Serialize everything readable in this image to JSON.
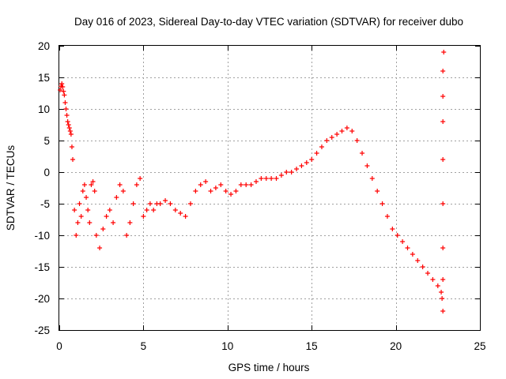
{
  "chart_data": {
    "type": "scatter",
    "title": "Day 016 of 2023, Sidereal Day-to-day VTEC variation (SDTVAR) for receiver dubo",
    "xlabel": "GPS time / hours",
    "ylabel": "SDTVAR / TECUs",
    "xlim": [
      0,
      25
    ],
    "ylim": [
      -25,
      20
    ],
    "xticks": [
      0,
      5,
      10,
      15,
      20,
      25
    ],
    "yticks": [
      -25,
      -20,
      -15,
      -10,
      -5,
      0,
      5,
      10,
      15,
      20
    ],
    "grid": true,
    "marker": "+",
    "series": [
      {
        "name": "SDTVAR",
        "color": "#ff0000",
        "x": [
          0.05,
          0.1,
          0.15,
          0.2,
          0.25,
          0.3,
          0.35,
          0.4,
          0.45,
          0.5,
          0.55,
          0.6,
          0.65,
          0.7,
          0.75,
          0.8,
          0.9,
          1.0,
          1.1,
          1.2,
          1.3,
          1.4,
          1.5,
          1.6,
          1.7,
          1.8,
          1.9,
          2.0,
          2.1,
          2.2,
          2.4,
          2.6,
          2.8,
          3.0,
          3.2,
          3.4,
          3.6,
          3.8,
          4.0,
          4.2,
          4.4,
          4.6,
          4.8,
          5.0,
          5.2,
          5.4,
          5.6,
          5.8,
          6.0,
          6.3,
          6.6,
          6.9,
          7.2,
          7.5,
          7.8,
          8.1,
          8.4,
          8.7,
          9.0,
          9.3,
          9.6,
          9.9,
          10.2,
          10.5,
          10.8,
          11.1,
          11.4,
          11.7,
          12.0,
          12.3,
          12.6,
          12.9,
          13.2,
          13.5,
          13.8,
          14.1,
          14.4,
          14.7,
          15.0,
          15.3,
          15.6,
          15.9,
          16.2,
          16.5,
          16.8,
          17.1,
          17.4,
          17.7,
          18.0,
          18.3,
          18.6,
          18.9,
          19.2,
          19.5,
          19.8,
          20.1,
          20.4,
          20.7,
          21.0,
          21.3,
          21.6,
          21.9,
          22.2,
          22.5,
          22.7,
          22.75,
          22.8,
          22.8,
          22.8,
          22.8,
          22.8,
          22.8,
          22.8,
          22.8,
          22.85
        ],
        "y": [
          13,
          13.6,
          14,
          13.5,
          12.8,
          12.2,
          11,
          10,
          9,
          8,
          7.5,
          7,
          6.5,
          6,
          4,
          2,
          -6,
          -10,
          -8,
          -5,
          -7,
          -3,
          -2,
          -4,
          -6,
          -8,
          -2,
          -1.5,
          -3,
          -10,
          -12,
          -9,
          -7,
          -6,
          -8,
          -4,
          -2,
          -3,
          -10,
          -8,
          -5,
          -2,
          -1,
          -7,
          -6,
          -5,
          -6,
          -5,
          -5,
          -4.5,
          -5,
          -6,
          -6.5,
          -7,
          -5,
          -3,
          -2,
          -1.5,
          -3,
          -2.5,
          -2,
          -3,
          -3.5,
          -3,
          -2,
          -2,
          -2,
          -1.5,
          -1,
          -1,
          -1,
          -1,
          -0.5,
          0,
          0,
          0.5,
          1,
          1.5,
          2,
          3,
          4,
          5,
          5.5,
          6,
          6.5,
          7,
          6.5,
          5,
          3,
          1,
          -1,
          -3,
          -5,
          -7,
          -9,
          -10,
          -11,
          -12,
          -13,
          -14,
          -15,
          -16,
          -17,
          -18,
          -19,
          -20,
          -22,
          -17,
          -12,
          -5,
          2,
          8,
          12,
          16,
          19
        ]
      }
    ]
  }
}
